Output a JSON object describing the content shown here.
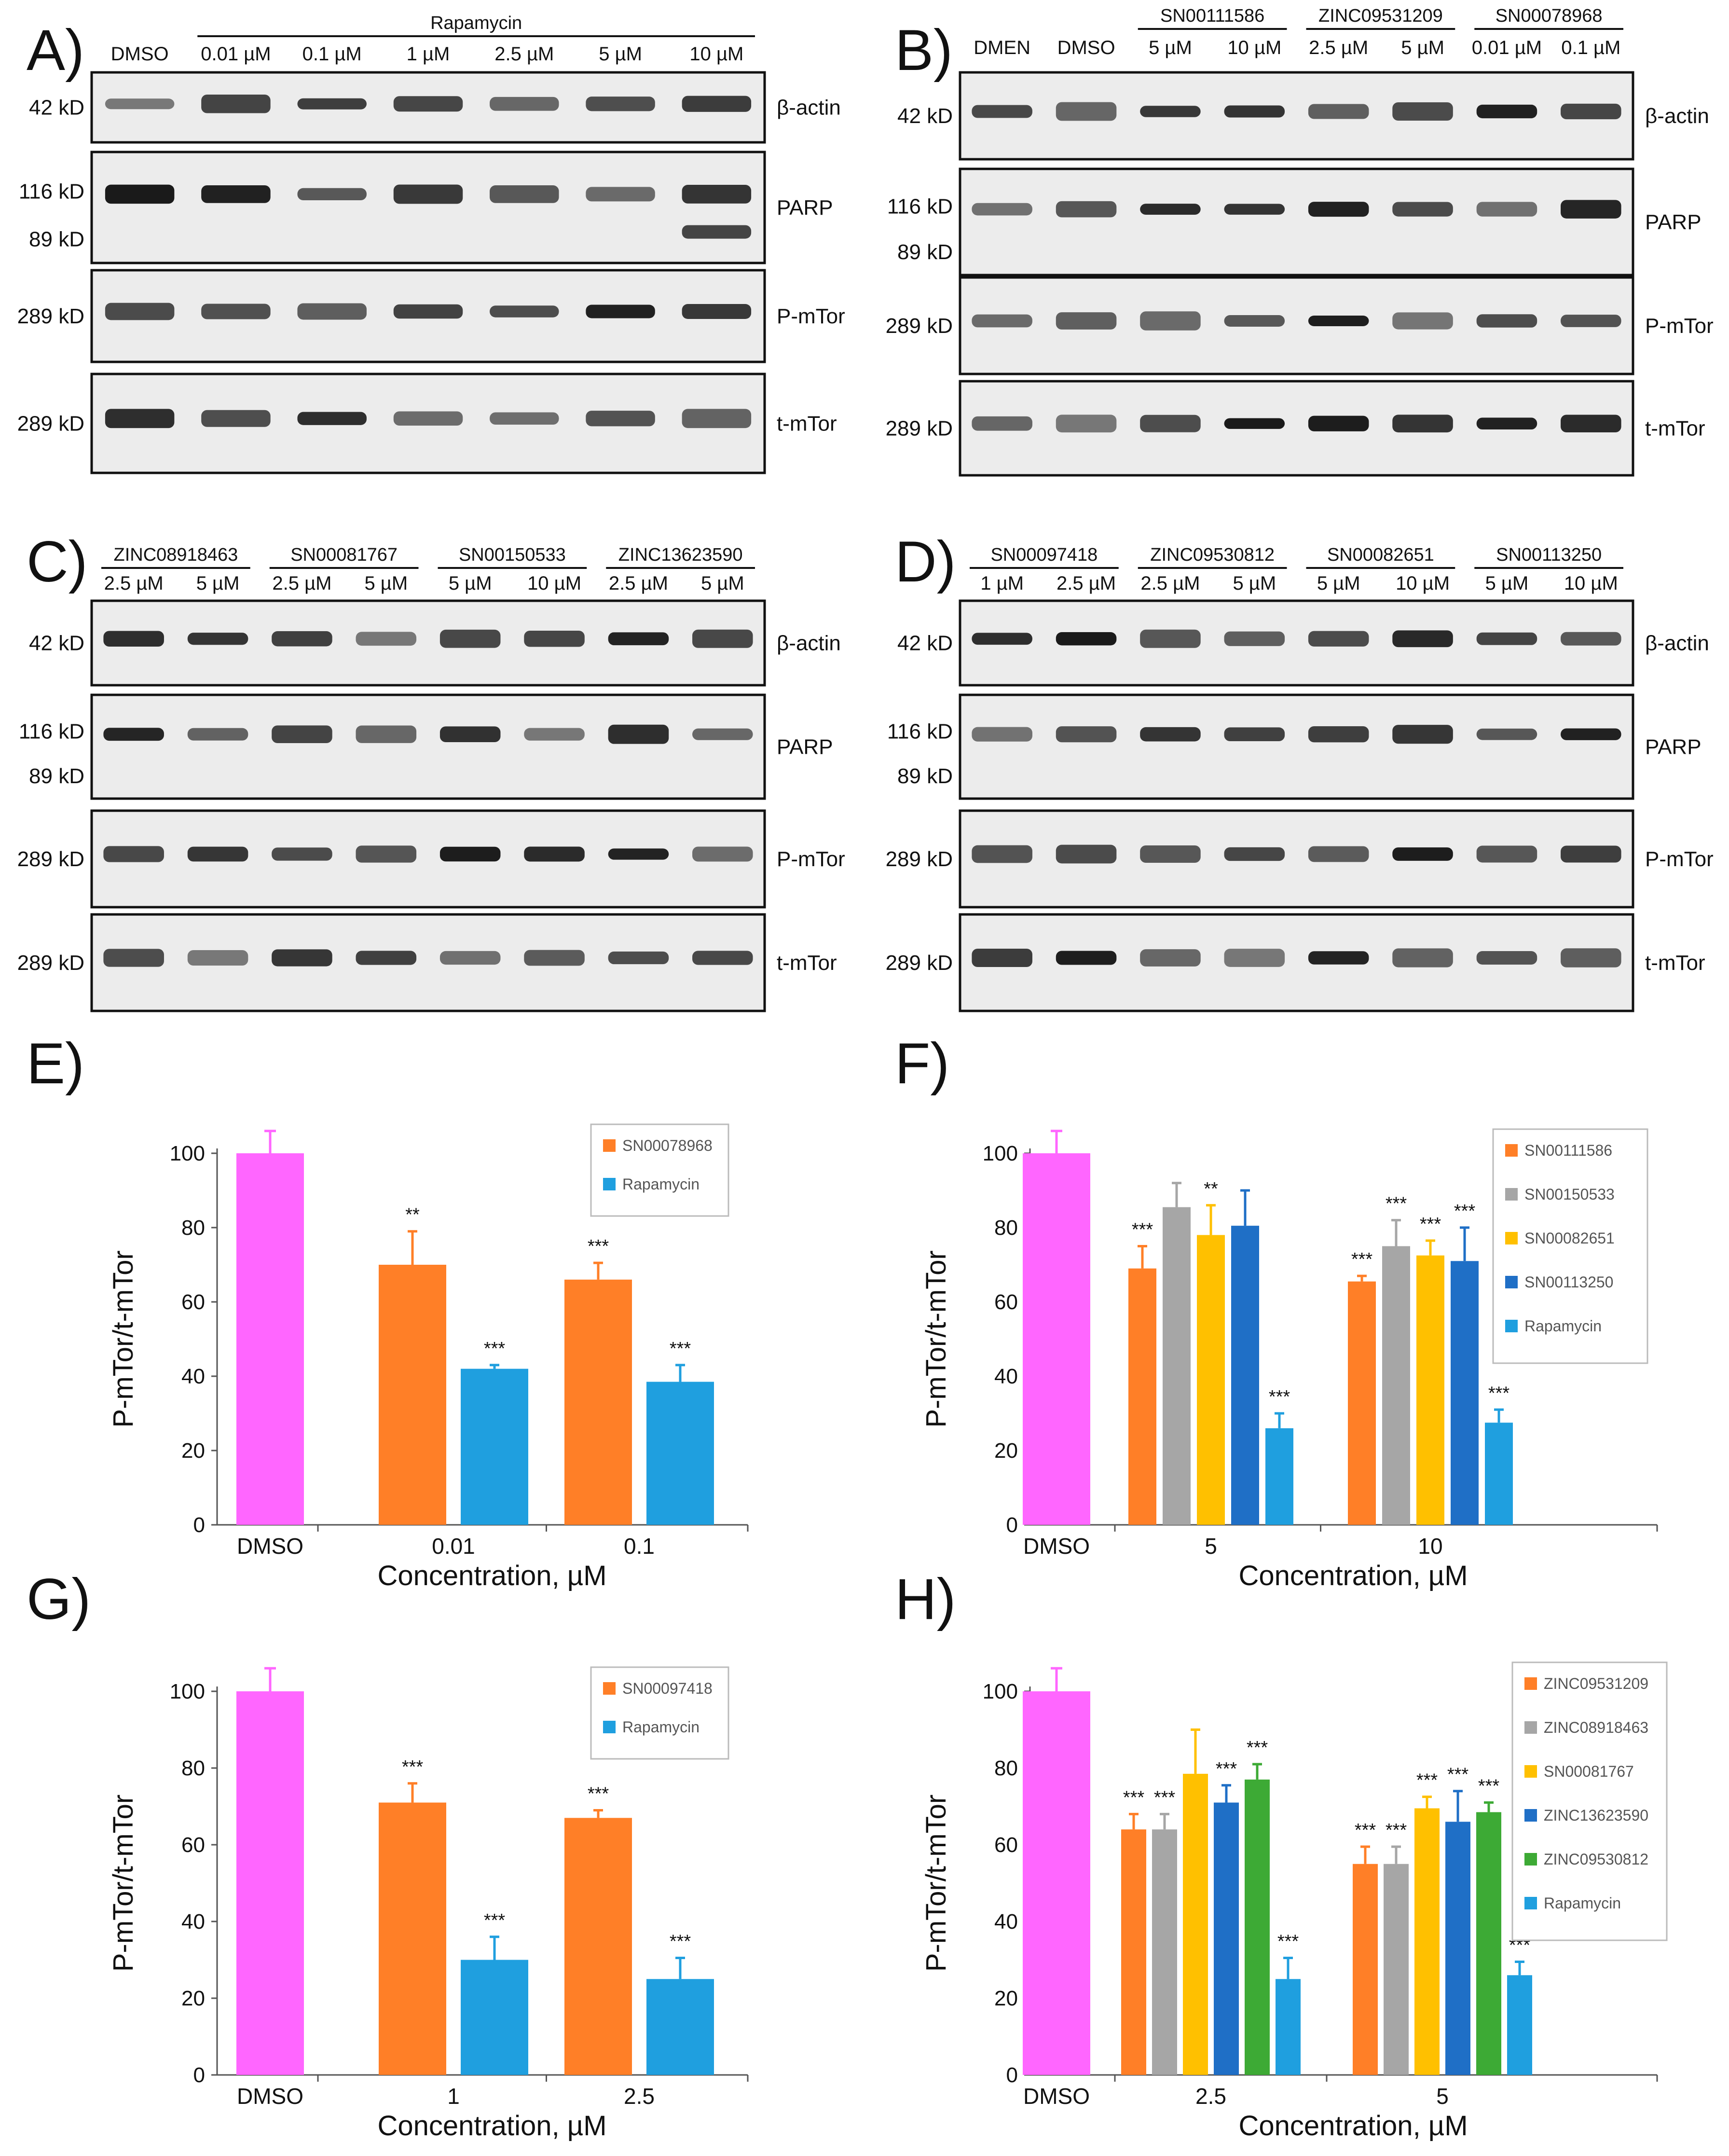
{
  "blots": [
    {
      "panel": "A)",
      "compounds": [
        {
          "name": "Rapamycin",
          "span": [
            1,
            6
          ]
        }
      ],
      "lanes": [
        "DMSO",
        "0.01 µM",
        "0.1 µM",
        "1 µM",
        "2.5 µM",
        "5 µM",
        "10 µM"
      ],
      "lane_label_row": "single",
      "rows": [
        {
          "label": "β-actin",
          "markers": [
            "42 kD"
          ]
        },
        {
          "label": "PARP",
          "markers": [
            "116 kD",
            "89 kD"
          ]
        },
        {
          "label": "P-mTor",
          "markers": [
            "289 kD"
          ]
        },
        {
          "label": "t-mTor",
          "markers": [
            "289 kD"
          ]
        }
      ],
      "cleaved_parp_lanes": [
        6
      ]
    },
    {
      "panel": "B)",
      "compounds": [
        {
          "name": "SN00111586",
          "span": [
            2,
            3
          ]
        },
        {
          "name": "ZINC09531209",
          "span": [
            4,
            5
          ]
        },
        {
          "name": "SN00078968",
          "span": [
            6,
            7
          ]
        }
      ],
      "lanes": [
        "DMEN",
        "DMSO",
        "5 µM",
        "10 µM",
        "2.5 µM",
        "5 µM",
        "0.01 µM",
        "0.1 µM"
      ],
      "lane_label_row": "single",
      "rows": [
        {
          "label": "β-actin",
          "markers": [
            "42 kD"
          ]
        },
        {
          "label": "PARP",
          "markers": [
            "116 kD",
            "89 kD"
          ]
        },
        {
          "label": "P-mTor",
          "markers": [
            "289 kD"
          ]
        },
        {
          "label": "t-mTor",
          "markers": [
            "289 kD"
          ]
        }
      ],
      "cleaved_parp_lanes": []
    },
    {
      "panel": "C)",
      "compounds": [
        {
          "name": "ZINC08918463",
          "span": [
            0,
            1
          ]
        },
        {
          "name": "SN00081767",
          "span": [
            2,
            3
          ]
        },
        {
          "name": "SN00150533",
          "span": [
            4,
            5
          ]
        },
        {
          "name": "ZINC13623590",
          "span": [
            6,
            7
          ]
        }
      ],
      "lanes": [
        "2.5 µM",
        "5 µM",
        "2.5 µM",
        "5 µM",
        "5 µM",
        "10 µM",
        "2.5 µM",
        "5 µM"
      ],
      "lane_label_row": "double",
      "rows": [
        {
          "label": "β-actin",
          "markers": [
            "42 kD"
          ]
        },
        {
          "label": "PARP",
          "markers": [
            "116 kD",
            "89 kD"
          ]
        },
        {
          "label": "P-mTor",
          "markers": [
            "289 kD"
          ]
        },
        {
          "label": "t-mTor",
          "markers": [
            "289 kD"
          ]
        }
      ],
      "cleaved_parp_lanes": []
    },
    {
      "panel": "D)",
      "compounds": [
        {
          "name": "SN00097418",
          "span": [
            0,
            1
          ]
        },
        {
          "name": "ZINC09530812",
          "span": [
            2,
            3
          ]
        },
        {
          "name": "SN00082651",
          "span": [
            4,
            5
          ]
        },
        {
          "name": "SN00113250",
          "span": [
            6,
            7
          ]
        }
      ],
      "lanes": [
        "1 µM",
        "2.5 µM",
        "2.5 µM",
        "5 µM",
        "5 µM",
        "10 µM",
        "5 µM",
        "10 µM"
      ],
      "lane_label_row": "double",
      "rows": [
        {
          "label": "β-actin",
          "markers": [
            "42 kD"
          ]
        },
        {
          "label": "PARP",
          "markers": [
            "116 kD",
            "89 kD"
          ]
        },
        {
          "label": "P-mTor",
          "markers": [
            "289 kD"
          ]
        },
        {
          "label": "t-mTor",
          "markers": [
            "289 kD"
          ]
        }
      ],
      "cleaved_parp_lanes": []
    }
  ],
  "chart_data": [
    {
      "panel": "E)",
      "type": "bar",
      "ylabel": "P-mTor/t-mTor",
      "xlabel": "Concentration, µM",
      "ylim": [
        0,
        100
      ],
      "yticks": [
        0,
        20,
        40,
        60,
        80,
        100
      ],
      "control": {
        "label": "DMSO",
        "value": 100,
        "error": 6,
        "color": "#FF66FF"
      },
      "categories": [
        "0.01",
        "0.1"
      ],
      "series": [
        {
          "name": "SN00078968",
          "color": "#FF7F27",
          "values": [
            70,
            66
          ],
          "errors": [
            9,
            4.5
          ],
          "sig": [
            "**",
            "***"
          ]
        },
        {
          "name": "Rapamycin",
          "color": "#1F9FDF",
          "values": [
            42,
            38.5
          ],
          "errors": [
            1,
            4.5
          ],
          "sig": [
            "***",
            "***"
          ]
        }
      ]
    },
    {
      "panel": "F)",
      "type": "bar",
      "ylabel": "P-mTor/t-mTor",
      "xlabel": "Concentration, µM",
      "ylim": [
        0,
        100
      ],
      "yticks": [
        0,
        20,
        40,
        60,
        80,
        100
      ],
      "control": {
        "label": "DMSO",
        "value": 100,
        "error": 6,
        "color": "#FF66FF"
      },
      "categories": [
        "5",
        "10"
      ],
      "series": [
        {
          "name": "SN00111586",
          "color": "#FF7F27",
          "values": [
            69,
            65.5
          ],
          "errors": [
            6,
            1.5
          ],
          "sig": [
            "***",
            "***"
          ]
        },
        {
          "name": "SN00150533",
          "color": "#A6A6A6",
          "values": [
            85.5,
            75
          ],
          "errors": [
            6.5,
            7
          ],
          "sig": [
            "",
            "***"
          ]
        },
        {
          "name": "SN00082651",
          "color": "#FFC000",
          "values": [
            78,
            72.5
          ],
          "errors": [
            8,
            4
          ],
          "sig": [
            "**",
            "***"
          ]
        },
        {
          "name": "SN00113250",
          "color": "#1F6FC6",
          "values": [
            80.5,
            71
          ],
          "errors": [
            9.5,
            9
          ],
          "sig": [
            "",
            "***"
          ]
        },
        {
          "name": "Rapamycin",
          "color": "#1F9FDF",
          "values": [
            26,
            27.5
          ],
          "errors": [
            4,
            3.5
          ],
          "sig": [
            "***",
            "***"
          ]
        }
      ]
    },
    {
      "panel": "G)",
      "type": "bar",
      "ylabel": "P-mTor/t-mTor",
      "xlabel": "Concentration, µM",
      "ylim": [
        0,
        100
      ],
      "yticks": [
        0,
        20,
        40,
        60,
        80,
        100
      ],
      "control": {
        "label": "DMSO",
        "value": 100,
        "error": 6,
        "color": "#FF66FF"
      },
      "categories": [
        "1",
        "2.5"
      ],
      "series": [
        {
          "name": "SN00097418",
          "color": "#FF7F27",
          "values": [
            71,
            67
          ],
          "errors": [
            5,
            2
          ],
          "sig": [
            "***",
            "***"
          ]
        },
        {
          "name": "Rapamycin",
          "color": "#1F9FDF",
          "values": [
            30,
            25
          ],
          "errors": [
            6,
            5.5
          ],
          "sig": [
            "***",
            "***"
          ]
        }
      ]
    },
    {
      "panel": "H)",
      "type": "bar",
      "ylabel": "P-mTor/t-mTor",
      "xlabel": "Concentration, µM",
      "ylim": [
        0,
        100
      ],
      "yticks": [
        0,
        20,
        40,
        60,
        80,
        100
      ],
      "control": {
        "label": "DMSO",
        "value": 100,
        "error": 6,
        "color": "#FF66FF"
      },
      "categories": [
        "2.5",
        "5"
      ],
      "series": [
        {
          "name": "ZINC09531209",
          "color": "#FF7F27",
          "values": [
            64,
            55
          ],
          "errors": [
            4,
            4.5
          ],
          "sig": [
            "***",
            "***"
          ]
        },
        {
          "name": "ZINC08918463",
          "color": "#A6A6A6",
          "values": [
            64,
            55
          ],
          "errors": [
            4,
            4.5
          ],
          "sig": [
            "***",
            "***"
          ]
        },
        {
          "name": "SN00081767",
          "color": "#FFC000",
          "values": [
            78.5,
            69.5
          ],
          "errors": [
            11.5,
            3
          ],
          "sig": [
            "",
            "***"
          ]
        },
        {
          "name": "ZINC13623590",
          "color": "#1F6FC6",
          "values": [
            71,
            66
          ],
          "errors": [
            4.5,
            8
          ],
          "sig": [
            "***",
            "***"
          ]
        },
        {
          "name": "ZINC09530812",
          "color": "#3DAA35",
          "values": [
            77,
            68.5
          ],
          "errors": [
            4,
            2.5
          ],
          "sig": [
            "***",
            "***"
          ]
        },
        {
          "name": "Rapamycin",
          "color": "#1F9FDF",
          "values": [
            25,
            26
          ],
          "errors": [
            5.5,
            3.5
          ],
          "sig": [
            "***",
            "***"
          ]
        }
      ]
    }
  ]
}
